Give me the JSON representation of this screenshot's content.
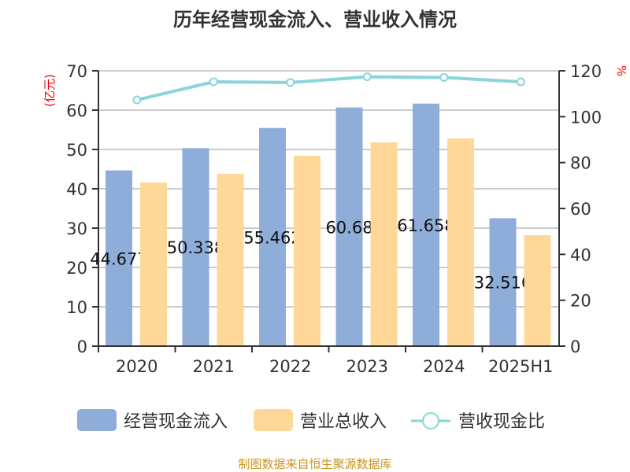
{
  "chart_data": {
    "type": "bar",
    "title": "历年经营现金流入、营业收入情况",
    "categories": [
      "2020",
      "2021",
      "2022",
      "2023",
      "2024",
      "2025H1"
    ],
    "series": [
      {
        "name": "经营现金流入",
        "type": "bar",
        "axis": "left",
        "color": "#8eadd9",
        "values": [
          44.677,
          50.338,
          55.462,
          60.68,
          61.658,
          32.516
        ],
        "labels": [
          "44.677",
          "50.338",
          "55.462",
          "60.68",
          "61.658",
          "32.516"
        ]
      },
      {
        "name": "营业总收入",
        "type": "bar",
        "axis": "left",
        "color": "#fed898",
        "values": [
          41.6,
          43.8,
          48.4,
          51.8,
          52.8,
          28.2
        ]
      },
      {
        "name": "营收现金比",
        "type": "line",
        "axis": "right",
        "color": "#88d6da",
        "values": [
          107.3,
          115.2,
          114.9,
          117.4,
          117.1,
          115.2
        ]
      }
    ],
    "ylabel": "(亿元)",
    "ylabel_right": "%",
    "ylim": [
      0,
      70
    ],
    "yticks": [
      "0",
      "10",
      "20",
      "30",
      "40",
      "50",
      "60",
      "70"
    ],
    "ylim_right": [
      0,
      120
    ],
    "yticks_right": [
      "0",
      "20",
      "40",
      "60",
      "80",
      "100",
      "120"
    ],
    "grid": true,
    "legend": "bottom",
    "source": "制图数据来自恒生聚源数据库"
  }
}
